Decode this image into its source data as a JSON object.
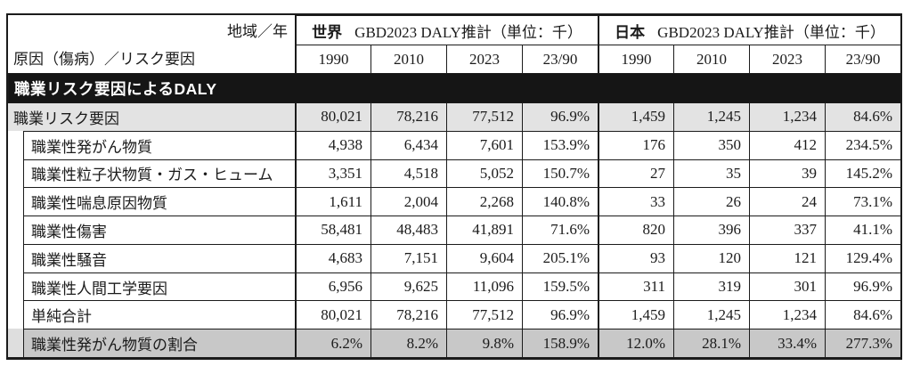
{
  "chart_data": {
    "type": "table",
    "corner": {
      "top_right": "地域／年",
      "bottom_left": "原因（傷病）／リスク要因"
    },
    "sections": [
      {
        "region": "世界",
        "suffix": "GBD2023 DALY推計（単位：千）"
      },
      {
        "region": "日本",
        "suffix": "GBD2023 DALY推計（単位：千）"
      }
    ],
    "year_columns": [
      "1990",
      "2010",
      "2023",
      "23/90"
    ],
    "banner": "職業リスク要因によるDALY",
    "rows": [
      {
        "label": "職業リスク要因",
        "kind": "group",
        "world": [
          "80,021",
          "78,216",
          "77,512",
          "96.9%"
        ],
        "japan": [
          "1,459",
          "1,245",
          "1,234",
          "84.6%"
        ]
      },
      {
        "label": "職業性発がん物質",
        "kind": "sub",
        "world": [
          "4,938",
          "6,434",
          "7,601",
          "153.9%"
        ],
        "japan": [
          "176",
          "350",
          "412",
          "234.5%"
        ]
      },
      {
        "label": "職業性粒子状物質・ガス・ヒューム",
        "kind": "sub",
        "world": [
          "3,351",
          "4,518",
          "5,052",
          "150.7%"
        ],
        "japan": [
          "27",
          "35",
          "39",
          "145.2%"
        ]
      },
      {
        "label": "職業性喘息原因物質",
        "kind": "sub",
        "world": [
          "1,611",
          "2,004",
          "2,268",
          "140.8%"
        ],
        "japan": [
          "33",
          "26",
          "24",
          "73.1%"
        ]
      },
      {
        "label": "職業性傷害",
        "kind": "sub",
        "world": [
          "58,481",
          "48,483",
          "41,891",
          "71.6%"
        ],
        "japan": [
          "820",
          "396",
          "337",
          "41.1%"
        ]
      },
      {
        "label": "職業性騒音",
        "kind": "sub",
        "world": [
          "4,683",
          "7,151",
          "9,604",
          "205.1%"
        ],
        "japan": [
          "93",
          "120",
          "121",
          "129.4%"
        ]
      },
      {
        "label": "職業性人間工学要因",
        "kind": "sub",
        "world": [
          "6,956",
          "9,625",
          "11,096",
          "159.5%"
        ],
        "japan": [
          "311",
          "319",
          "301",
          "96.9%"
        ]
      },
      {
        "label": "単純合計",
        "kind": "sub",
        "world": [
          "80,021",
          "78,216",
          "77,512",
          "96.9%"
        ],
        "japan": [
          "1,459",
          "1,245",
          "1,234",
          "84.6%"
        ]
      },
      {
        "label": "職業性発がん物質の割合",
        "kind": "ratio",
        "world": [
          "6.2%",
          "8.2%",
          "9.8%",
          "158.9%"
        ],
        "japan": [
          "12.0%",
          "28.1%",
          "33.4%",
          "277.3%"
        ]
      }
    ],
    "colors": {
      "banner_bg": "#151515",
      "banner_text": "#ffffff",
      "group_row_bg": "#e3e3e3",
      "ratio_row_bg": "#c8c8c8",
      "border": "#1b1b1b"
    }
  }
}
